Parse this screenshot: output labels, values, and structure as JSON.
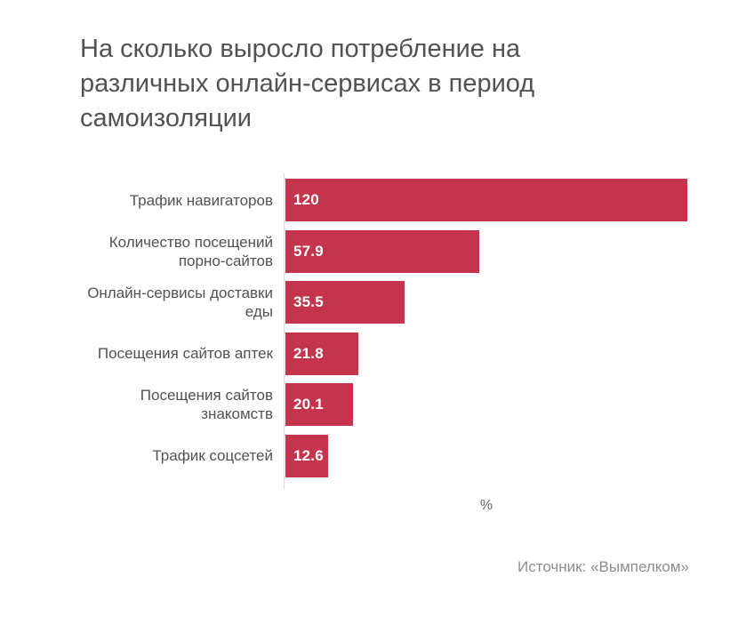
{
  "chart_data": {
    "type": "bar",
    "orientation": "horizontal",
    "title": "На сколько выросло потребление на различных онлайн-сервисах в период самоизоляции",
    "categories": [
      "Трафик навигаторов",
      "Количество посещений порно-сайтов",
      "Онлайн-сервисы доставки еды",
      "Посещения сайтов аптек",
      "Посещения сайтов знакомств",
      "Трафик соцсетей"
    ],
    "values": [
      120,
      57.9,
      35.5,
      21.8,
      20.1,
      12.6
    ],
    "value_labels": [
      "120",
      "57.9",
      "35.5",
      "21.8",
      "20.1",
      "12.6"
    ],
    "xlabel": "%",
    "xlim": [
      0,
      120
    ],
    "xmax": 120,
    "grid": false,
    "legend": "none",
    "value_label_position": "inside-start",
    "bar_color": "#c4344c"
  },
  "display": {
    "title_lines": [
      "На сколько выросло потребление на",
      "различных онлайн-сервисах в период",
      "самоизоляции"
    ],
    "category_lines": [
      [
        "Трафик навигаторов"
      ],
      [
        "Количество посещений",
        "порно-сайтов"
      ],
      [
        "Онлайн-сервисы доставки",
        "еды"
      ],
      [
        "Посещения сайтов аптек"
      ],
      [
        "Посещения сайтов",
        "знакомств"
      ],
      [
        "Трафик соцсетей"
      ]
    ]
  },
  "source": "Источник: «Вымпелком»",
  "colors": {
    "background": "#ffffff",
    "bar": "#c4344c",
    "title_text": "#525252",
    "category_text": "#525252",
    "value_text": "#ffffff",
    "axis_line": "#dcdcdc",
    "unit_text": "#666666",
    "source_text": "#8d8d8d"
  }
}
